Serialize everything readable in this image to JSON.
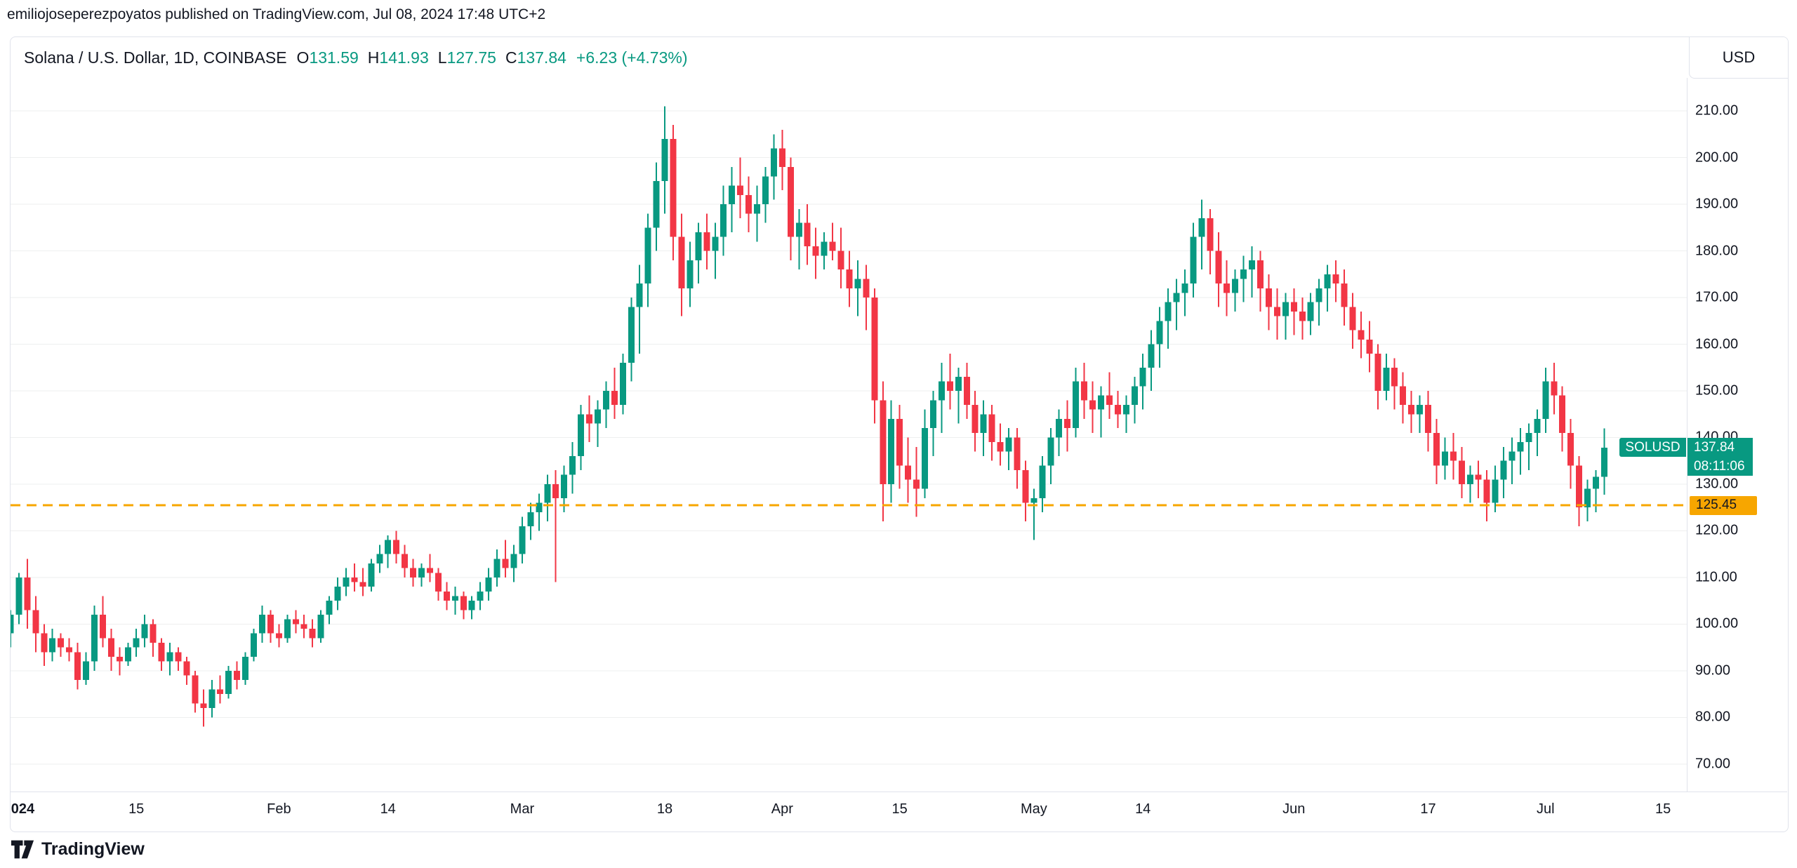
{
  "publisher_line": "emiliojoseperezpoyatos published on TradingView.com, Jul 08, 2024 17:48 UTC+2",
  "header": {
    "symbol_title": "Solana / U.S. Dollar, 1D, COINBASE",
    "ohlc": [
      {
        "label": "O",
        "value": "131.59"
      },
      {
        "label": "H",
        "value": "141.93"
      },
      {
        "label": "L",
        "value": "127.75"
      },
      {
        "label": "C",
        "value": "137.84"
      }
    ],
    "change": "+6.23 (+4.73%)",
    "currency_button": "USD"
  },
  "price_labels": {
    "symbol_badge": "SOLUSD",
    "last_price": "137.84",
    "countdown": "08:11:06",
    "alert_price": "125.45"
  },
  "footer": {
    "brand": "TradingView"
  },
  "colors": {
    "up": "#089981",
    "down": "#F23645",
    "alert": "#F7A600",
    "grid": "rgba(42,46,57,0.08)",
    "axis_text": "#131722",
    "border": "#E0E3EB"
  },
  "chart_data": {
    "type": "candlestick",
    "symbol": "SOLUSD",
    "exchange": "COINBASE",
    "interval": "1D",
    "title": "Solana / U.S. Dollar, 1D, COINBASE",
    "ylim": [
      64.1,
      217.1
    ],
    "price_ticks": [
      210,
      200,
      190,
      180,
      170,
      160,
      150,
      140,
      130,
      120,
      110,
      100,
      90,
      80,
      70
    ],
    "time_ticks": [
      {
        "i": 2,
        "label": "2024",
        "bold": true
      },
      {
        "i": 16,
        "label": "15"
      },
      {
        "i": 33,
        "label": "Feb"
      },
      {
        "i": 46,
        "label": "14"
      },
      {
        "i": 62,
        "label": "Mar"
      },
      {
        "i": 79,
        "label": "18"
      },
      {
        "i": 93,
        "label": "Apr"
      },
      {
        "i": 107,
        "label": "15"
      },
      {
        "i": 123,
        "label": "May"
      },
      {
        "i": 136,
        "label": "14"
      },
      {
        "i": 154,
        "label": "Jun"
      },
      {
        "i": 170,
        "label": "17"
      },
      {
        "i": 184,
        "label": "Jul"
      },
      {
        "i": 198,
        "label": "15"
      }
    ],
    "alert_level": 125.45,
    "last_price": 137.84,
    "candles": [
      [
        "2023-12-30",
        99,
        102,
        96,
        98
      ],
      [
        "2023-12-31",
        98,
        103,
        95,
        102
      ],
      [
        "2024-01-01",
        102,
        111,
        100,
        110
      ],
      [
        "2024-01-02",
        110,
        114,
        99,
        103
      ],
      [
        "2024-01-03",
        103,
        106,
        94,
        98
      ],
      [
        "2024-01-04",
        98,
        100,
        91,
        94
      ],
      [
        "2024-01-05",
        94,
        99,
        92,
        97
      ],
      [
        "2024-01-06",
        97,
        98,
        93,
        95
      ],
      [
        "2024-01-07",
        95,
        97,
        92,
        94
      ],
      [
        "2024-01-08",
        94,
        96,
        86,
        88
      ],
      [
        "2024-01-09",
        88,
        94,
        87,
        92
      ],
      [
        "2024-01-10",
        92,
        104,
        90,
        102
      ],
      [
        "2024-01-11",
        102,
        106,
        95,
        97
      ],
      [
        "2024-01-12",
        97,
        99,
        90,
        93
      ],
      [
        "2024-01-13",
        93,
        95,
        89,
        92
      ],
      [
        "2024-01-14",
        92,
        96,
        91,
        95
      ],
      [
        "2024-01-15",
        95,
        99,
        93,
        97
      ],
      [
        "2024-01-16",
        97,
        102,
        95,
        100
      ],
      [
        "2024-01-17",
        100,
        101,
        93,
        96
      ],
      [
        "2024-01-18",
        96,
        97,
        90,
        92
      ],
      [
        "2024-01-19",
        92,
        96,
        89,
        94
      ],
      [
        "2024-01-20",
        94,
        95,
        90,
        92
      ],
      [
        "2024-01-21",
        92,
        93,
        87,
        89
      ],
      [
        "2024-01-22",
        89,
        90,
        81,
        83
      ],
      [
        "2024-01-23",
        83,
        86,
        78,
        82
      ],
      [
        "2024-01-24",
        82,
        88,
        80,
        86
      ],
      [
        "2024-01-25",
        86,
        89,
        83,
        85
      ],
      [
        "2024-01-26",
        85,
        91,
        84,
        90
      ],
      [
        "2024-01-27",
        90,
        92,
        86,
        88
      ],
      [
        "2024-01-28",
        88,
        94,
        87,
        93
      ],
      [
        "2024-01-29",
        93,
        99,
        92,
        98
      ],
      [
        "2024-01-30",
        98,
        104,
        96,
        102
      ],
      [
        "2024-01-31",
        102,
        103,
        96,
        98
      ],
      [
        "2024-02-01",
        98,
        100,
        95,
        97
      ],
      [
        "2024-02-02",
        97,
        102,
        96,
        101
      ],
      [
        "2024-02-03",
        101,
        103,
        98,
        100
      ],
      [
        "2024-02-04",
        100,
        102,
        97,
        99
      ],
      [
        "2024-02-05",
        99,
        101,
        95,
        97
      ],
      [
        "2024-02-06",
        97,
        103,
        96,
        102
      ],
      [
        "2024-02-07",
        102,
        106,
        100,
        105
      ],
      [
        "2024-02-08",
        105,
        110,
        103,
        108
      ],
      [
        "2024-02-09",
        108,
        112,
        106,
        110
      ],
      [
        "2024-02-10",
        110,
        113,
        107,
        109
      ],
      [
        "2024-02-11",
        109,
        112,
        106,
        108
      ],
      [
        "2024-02-12",
        108,
        114,
        107,
        113
      ],
      [
        "2024-02-13",
        113,
        117,
        111,
        115
      ],
      [
        "2024-02-14",
        115,
        119,
        112,
        118
      ],
      [
        "2024-02-15",
        118,
        120,
        113,
        115
      ],
      [
        "2024-02-16",
        115,
        117,
        110,
        112
      ],
      [
        "2024-02-17",
        112,
        114,
        108,
        110
      ],
      [
        "2024-02-18",
        110,
        113,
        108,
        112
      ],
      [
        "2024-02-19",
        112,
        115,
        109,
        111
      ],
      [
        "2024-02-20",
        111,
        112,
        105,
        107
      ],
      [
        "2024-02-21",
        107,
        109,
        103,
        105
      ],
      [
        "2024-02-22",
        105,
        108,
        102,
        106
      ],
      [
        "2024-02-23",
        106,
        107,
        101,
        103
      ],
      [
        "2024-02-24",
        103,
        106,
        101,
        105
      ],
      [
        "2024-02-25",
        105,
        109,
        103,
        107
      ],
      [
        "2024-02-26",
        107,
        112,
        105,
        110
      ],
      [
        "2024-02-27",
        110,
        116,
        108,
        114
      ],
      [
        "2024-02-28",
        114,
        118,
        110,
        112
      ],
      [
        "2024-02-29",
        112,
        117,
        109,
        115
      ],
      [
        "2024-03-01",
        115,
        123,
        113,
        121
      ],
      [
        "2024-03-02",
        121,
        126,
        118,
        124
      ],
      [
        "2024-03-03",
        124,
        128,
        120,
        126
      ],
      [
        "2024-03-04",
        126,
        132,
        122,
        130
      ],
      [
        "2024-03-05",
        130,
        133,
        109,
        127
      ],
      [
        "2024-03-06",
        127,
        134,
        124,
        132
      ],
      [
        "2024-03-07",
        132,
        139,
        128,
        136
      ],
      [
        "2024-03-08",
        136,
        147,
        133,
        145
      ],
      [
        "2024-03-09",
        145,
        149,
        139,
        143
      ],
      [
        "2024-03-10",
        143,
        148,
        138,
        146
      ],
      [
        "2024-03-11",
        146,
        152,
        142,
        150
      ],
      [
        "2024-03-12",
        150,
        155,
        144,
        147
      ],
      [
        "2024-03-13",
        147,
        158,
        145,
        156
      ],
      [
        "2024-03-14",
        156,
        170,
        152,
        168
      ],
      [
        "2024-03-15",
        168,
        177,
        158,
        173
      ],
      [
        "2024-03-16",
        173,
        188,
        168,
        185
      ],
      [
        "2024-03-17",
        185,
        199,
        180,
        195
      ],
      [
        "2024-03-18",
        195,
        211,
        188,
        204
      ],
      [
        "2024-03-19",
        204,
        207,
        178,
        183
      ],
      [
        "2024-03-20",
        183,
        188,
        166,
        172
      ],
      [
        "2024-03-21",
        172,
        182,
        168,
        178
      ],
      [
        "2024-03-22",
        178,
        186,
        173,
        184
      ],
      [
        "2024-03-23",
        184,
        188,
        176,
        180
      ],
      [
        "2024-03-24",
        180,
        186,
        174,
        183
      ],
      [
        "2024-03-25",
        183,
        194,
        179,
        190
      ],
      [
        "2024-03-26",
        190,
        198,
        184,
        194
      ],
      [
        "2024-03-27",
        194,
        200,
        187,
        192
      ],
      [
        "2024-03-28",
        192,
        196,
        184,
        188
      ],
      [
        "2024-03-29",
        188,
        194,
        182,
        190
      ],
      [
        "2024-03-30",
        190,
        198,
        186,
        196
      ],
      [
        "2024-03-31",
        196,
        205,
        191,
        202
      ],
      [
        "2024-04-01",
        202,
        206,
        193,
        198
      ],
      [
        "2024-04-02",
        198,
        200,
        178,
        183
      ],
      [
        "2024-04-03",
        183,
        189,
        176,
        186
      ],
      [
        "2024-04-04",
        186,
        190,
        177,
        181
      ],
      [
        "2024-04-05",
        181,
        185,
        174,
        179
      ],
      [
        "2024-04-06",
        179,
        184,
        176,
        182
      ],
      [
        "2024-04-07",
        182,
        186,
        178,
        180
      ],
      [
        "2024-04-08",
        180,
        185,
        172,
        176
      ],
      [
        "2024-04-09",
        176,
        180,
        168,
        172
      ],
      [
        "2024-04-10",
        172,
        178,
        166,
        174
      ],
      [
        "2024-04-11",
        174,
        177,
        163,
        170
      ],
      [
        "2024-04-12",
        170,
        172,
        143,
        148
      ],
      [
        "2024-04-13",
        148,
        152,
        122,
        130
      ],
      [
        "2024-04-14",
        130,
        148,
        126,
        144
      ],
      [
        "2024-04-15",
        144,
        147,
        129,
        134
      ],
      [
        "2024-04-16",
        134,
        140,
        126,
        131
      ],
      [
        "2024-04-17",
        131,
        138,
        123,
        129
      ],
      [
        "2024-04-18",
        129,
        146,
        127,
        142
      ],
      [
        "2024-04-19",
        142,
        150,
        136,
        148
      ],
      [
        "2024-04-20",
        148,
        156,
        141,
        152
      ],
      [
        "2024-04-21",
        152,
        158,
        146,
        150
      ],
      [
        "2024-04-22",
        150,
        155,
        143,
        153
      ],
      [
        "2024-04-23",
        153,
        156,
        144,
        147
      ],
      [
        "2024-04-24",
        147,
        150,
        137,
        141
      ],
      [
        "2024-04-25",
        141,
        148,
        136,
        145
      ],
      [
        "2024-04-26",
        145,
        147,
        135,
        139
      ],
      [
        "2024-04-27",
        139,
        143,
        134,
        137
      ],
      [
        "2024-04-28",
        137,
        142,
        133,
        140
      ],
      [
        "2024-04-29",
        140,
        142,
        129,
        133
      ],
      [
        "2024-04-30",
        133,
        135,
        122,
        126
      ],
      [
        "2024-05-01",
        126,
        129,
        118,
        127
      ],
      [
        "2024-05-02",
        127,
        136,
        124,
        134
      ],
      [
        "2024-05-03",
        134,
        142,
        130,
        140
      ],
      [
        "2024-05-04",
        140,
        146,
        136,
        144
      ],
      [
        "2024-05-05",
        144,
        148,
        137,
        142
      ],
      [
        "2024-05-06",
        142,
        155,
        140,
        152
      ],
      [
        "2024-05-07",
        152,
        156,
        144,
        148
      ],
      [
        "2024-05-08",
        148,
        152,
        141,
        146
      ],
      [
        "2024-05-09",
        146,
        151,
        140,
        149
      ],
      [
        "2024-05-10",
        149,
        154,
        144,
        147
      ],
      [
        "2024-05-11",
        147,
        150,
        142,
        145
      ],
      [
        "2024-05-12",
        145,
        149,
        141,
        147
      ],
      [
        "2024-05-13",
        147,
        153,
        143,
        151
      ],
      [
        "2024-05-14",
        151,
        158,
        146,
        155
      ],
      [
        "2024-05-15",
        155,
        163,
        150,
        160
      ],
      [
        "2024-05-16",
        160,
        168,
        155,
        165
      ],
      [
        "2024-05-17",
        165,
        172,
        159,
        169
      ],
      [
        "2024-05-18",
        169,
        174,
        163,
        171
      ],
      [
        "2024-05-19",
        171,
        176,
        166,
        173
      ],
      [
        "2024-05-20",
        173,
        186,
        170,
        183
      ],
      [
        "2024-05-21",
        183,
        191,
        176,
        187
      ],
      [
        "2024-05-22",
        187,
        189,
        175,
        180
      ],
      [
        "2024-05-23",
        180,
        184,
        168,
        173
      ],
      [
        "2024-05-24",
        173,
        178,
        166,
        171
      ],
      [
        "2024-05-25",
        171,
        176,
        167,
        174
      ],
      [
        "2024-05-26",
        174,
        179,
        169,
        176
      ],
      [
        "2024-05-27",
        176,
        181,
        170,
        178
      ],
      [
        "2024-05-28",
        178,
        180,
        167,
        172
      ],
      [
        "2024-05-29",
        172,
        175,
        163,
        168
      ],
      [
        "2024-05-30",
        168,
        172,
        161,
        166
      ],
      [
        "2024-05-31",
        166,
        171,
        161,
        169
      ],
      [
        "2024-06-01",
        169,
        172,
        162,
        167
      ],
      [
        "2024-06-02",
        167,
        170,
        161,
        165
      ],
      [
        "2024-06-03",
        165,
        171,
        162,
        169
      ],
      [
        "2024-06-04",
        169,
        174,
        164,
        172
      ],
      [
        "2024-06-05",
        172,
        177,
        167,
        175
      ],
      [
        "2024-06-06",
        175,
        178,
        169,
        173
      ],
      [
        "2024-06-07",
        173,
        176,
        164,
        168
      ],
      [
        "2024-06-08",
        168,
        171,
        159,
        163
      ],
      [
        "2024-06-09",
        163,
        167,
        157,
        161
      ],
      [
        "2024-06-10",
        161,
        165,
        154,
        158
      ],
      [
        "2024-06-11",
        158,
        160,
        146,
        150
      ],
      [
        "2024-06-12",
        150,
        158,
        148,
        155
      ],
      [
        "2024-06-13",
        155,
        157,
        146,
        151
      ],
      [
        "2024-06-14",
        151,
        154,
        143,
        147
      ],
      [
        "2024-06-15",
        147,
        150,
        141,
        145
      ],
      [
        "2024-06-16",
        145,
        149,
        141,
        147
      ],
      [
        "2024-06-17",
        147,
        150,
        137,
        141
      ],
      [
        "2024-06-18",
        141,
        144,
        130,
        134
      ],
      [
        "2024-06-19",
        134,
        140,
        131,
        137
      ],
      [
        "2024-06-20",
        137,
        141,
        131,
        135
      ],
      [
        "2024-06-21",
        135,
        138,
        127,
        130
      ],
      [
        "2024-06-22",
        130,
        134,
        126,
        132
      ],
      [
        "2024-06-23",
        132,
        135,
        127,
        131
      ],
      [
        "2024-06-24",
        131,
        133,
        122,
        126
      ],
      [
        "2024-06-25",
        126,
        134,
        124,
        131
      ],
      [
        "2024-06-26",
        131,
        138,
        127,
        135
      ],
      [
        "2024-06-27",
        135,
        140,
        130,
        137
      ],
      [
        "2024-06-28",
        137,
        142,
        132,
        139
      ],
      [
        "2024-06-29",
        139,
        143,
        133,
        141
      ],
      [
        "2024-06-30",
        141,
        146,
        136,
        144
      ],
      [
        "2024-07-01",
        144,
        155,
        141,
        152
      ],
      [
        "2024-07-02",
        152,
        156,
        145,
        149
      ],
      [
        "2024-07-03",
        149,
        151,
        137,
        141
      ],
      [
        "2024-07-04",
        141,
        144,
        129,
        134
      ],
      [
        "2024-07-05",
        134,
        136,
        121,
        125
      ],
      [
        "2024-07-06",
        125,
        131,
        122,
        129
      ],
      [
        "2024-07-07",
        129,
        133,
        124,
        131.6
      ],
      [
        "2024-07-08",
        131.59,
        141.93,
        127.75,
        137.84
      ]
    ]
  }
}
